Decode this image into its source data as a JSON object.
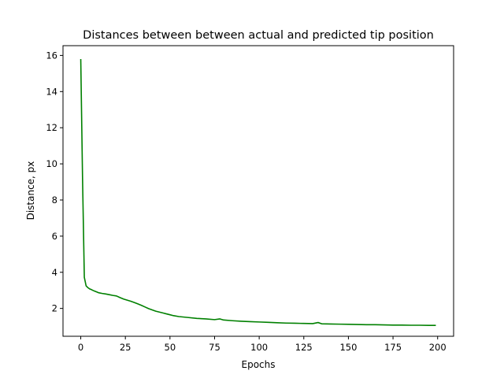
{
  "chart_data": {
    "type": "line",
    "title": "Distances between between actual and predicted tip position",
    "xlabel": "Epochs",
    "ylabel": "Distance, px",
    "xlim": [
      -9.95,
      208.95
    ],
    "ylim": [
      0.46,
      16.54
    ],
    "xticks": [
      0,
      25,
      50,
      75,
      100,
      125,
      150,
      175,
      200
    ],
    "yticks": [
      2,
      4,
      6,
      8,
      10,
      12,
      14,
      16
    ],
    "grid": false,
    "series": [
      {
        "color": "#008000",
        "x": [
          0,
          1,
          2,
          3,
          4,
          5,
          6,
          7,
          8,
          9,
          10,
          12,
          14,
          16,
          18,
          20,
          22,
          24,
          26,
          28,
          30,
          32,
          34,
          36,
          38,
          40,
          42,
          44,
          46,
          48,
          50,
          52,
          55,
          60,
          65,
          70,
          75,
          78,
          80,
          85,
          90,
          95,
          100,
          105,
          110,
          115,
          120,
          125,
          130,
          133,
          135,
          140,
          145,
          150,
          155,
          160,
          165,
          170,
          175,
          180,
          185,
          190,
          195,
          199
        ],
        "y": [
          15.8,
          9.2,
          3.72,
          3.25,
          3.15,
          3.08,
          3.04,
          2.99,
          2.95,
          2.91,
          2.87,
          2.83,
          2.8,
          2.76,
          2.72,
          2.69,
          2.6,
          2.52,
          2.46,
          2.4,
          2.33,
          2.25,
          2.17,
          2.08,
          1.99,
          1.92,
          1.85,
          1.8,
          1.75,
          1.7,
          1.65,
          1.6,
          1.55,
          1.5,
          1.45,
          1.42,
          1.38,
          1.42,
          1.36,
          1.32,
          1.29,
          1.27,
          1.25,
          1.23,
          1.21,
          1.19,
          1.18,
          1.17,
          1.16,
          1.22,
          1.15,
          1.14,
          1.13,
          1.12,
          1.11,
          1.1,
          1.1,
          1.09,
          1.08,
          1.08,
          1.07,
          1.07,
          1.06,
          1.06
        ]
      }
    ]
  }
}
